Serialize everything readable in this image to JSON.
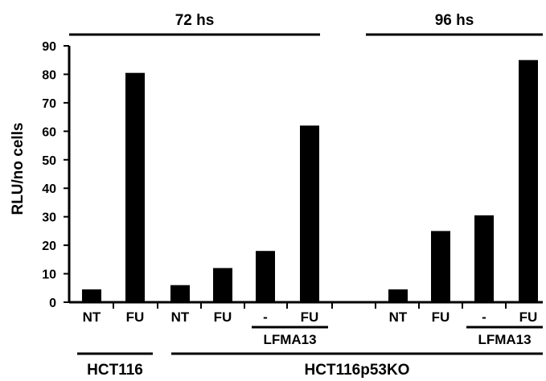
{
  "chart_data": {
    "type": "bar",
    "ylabel": "RLU/no cells",
    "ylim": [
      0,
      90
    ],
    "yticks": [
      0,
      10,
      20,
      30,
      40,
      50,
      60,
      70,
      80,
      90
    ],
    "grid": false,
    "bar_color": "#000000",
    "categories": [
      "NT",
      "FU",
      "NT",
      "FU",
      "-",
      "FU",
      "NT",
      "FU",
      "-",
      "FU"
    ],
    "values": [
      4.5,
      80.5,
      6,
      12,
      18,
      62,
      4.5,
      25,
      30.5,
      85
    ],
    "time_groups": [
      {
        "label": "72 hs",
        "start": 0,
        "end": 5
      },
      {
        "label": "96 hs",
        "start": 6,
        "end": 9
      }
    ],
    "treatment_groups": [
      {
        "label": "LFMA13",
        "start": 4,
        "end": 5
      },
      {
        "label": "LFMA13",
        "start": 8,
        "end": 9
      }
    ],
    "cell_line_groups": [
      {
        "label": "HCT116",
        "start": 0,
        "end": 1
      },
      {
        "label": "HCT116p53KO",
        "start": 2,
        "end": 9
      }
    ]
  }
}
